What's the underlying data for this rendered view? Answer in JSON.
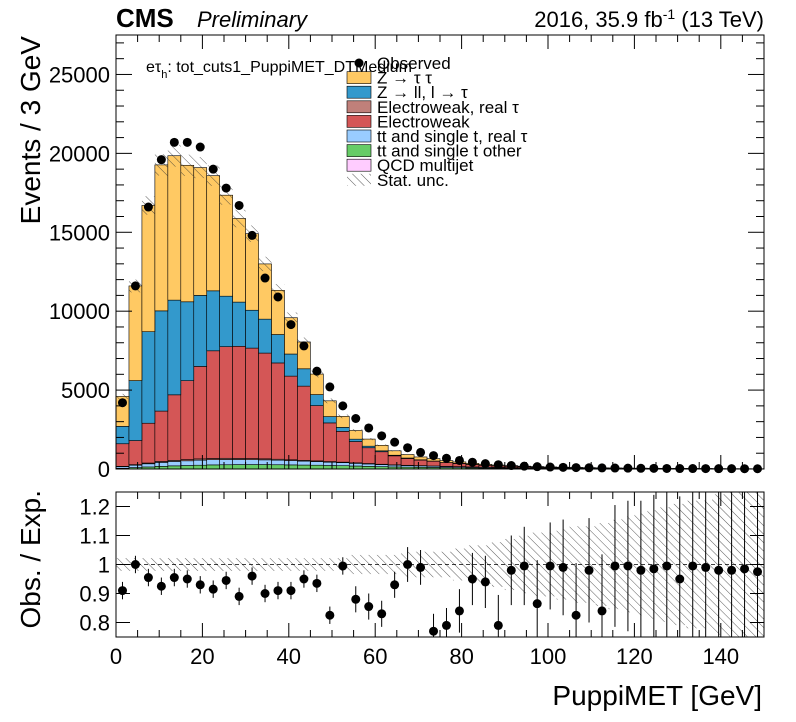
{
  "header": {
    "experiment": "CMS",
    "status": "Preliminary",
    "lumi_prefix": "2016, 35.9 fb",
    "lumi_exp": "-1",
    "lumi_suffix": " (13 TeV)"
  },
  "channel_label": {
    "prefix": "eτ",
    "sub": "h",
    "suffix": ": tot_cuts1_PuppiMET_DTMedium"
  },
  "legend": [
    {
      "label": "Observed",
      "style": "marker",
      "color": "#000000"
    },
    {
      "label": "Z → τ τ",
      "style": "box",
      "color": "#ffc963"
    },
    {
      "label": "Z → ll, l → τ",
      "style": "box",
      "color": "#3399cc"
    },
    {
      "label": "Electroweak, real  τ",
      "style": "box",
      "color": "#c0807a"
    },
    {
      "label": "Electroweak",
      "style": "box",
      "color": "#d45656"
    },
    {
      "label": "tt and single t, real  τ",
      "style": "box",
      "color": "#99ccff"
    },
    {
      "label": "tt and single t other",
      "style": "box",
      "color": "#66cc66"
    },
    {
      "label": "QCD multijet",
      "style": "box",
      "color": "#ffccff"
    },
    {
      "label": "Stat. unc.",
      "style": "hatch",
      "color": "#000000"
    }
  ],
  "chart_data": {
    "type": "bar",
    "stacked": true,
    "x_bin_edges_start": 0,
    "x_bin_width": 3,
    "xlabel": "PuppiMET [GeV]",
    "ylabel": "Events / 3 GeV",
    "ratio_ylabel": "Obs. / Exp.",
    "xlim": [
      0,
      150
    ],
    "ylim": [
      0,
      27500
    ],
    "ratio_ylim": [
      0.75,
      1.25
    ],
    "x_ticks": [
      0,
      20,
      40,
      60,
      80,
      100,
      120,
      140
    ],
    "y_ticks": [
      0,
      5000,
      10000,
      15000,
      20000,
      25000
    ],
    "ratio_y_ticks": [
      0.8,
      0.9,
      1,
      1.1,
      1.2
    ],
    "ratio_y_tick_labels": [
      "0.8",
      "0.9",
      "1",
      "1.1",
      "1.2"
    ],
    "series": [
      {
        "name": "tt and single t other",
        "color": "#66cc66",
        "values": [
          50,
          90,
          130,
          170,
          200,
          220,
          240,
          260,
          270,
          280,
          280,
          280,
          270,
          260,
          250,
          240,
          220,
          210,
          190,
          170,
          150,
          130,
          120,
          110,
          100,
          90,
          80,
          70,
          60,
          55,
          50,
          45,
          40,
          36,
          32,
          28,
          25,
          22,
          20,
          18,
          16,
          14,
          12,
          11,
          10,
          9,
          8,
          7,
          6,
          5
        ]
      },
      {
        "name": "tt and single t, real  τ",
        "color": "#99ccff",
        "values": [
          100,
          150,
          200,
          250,
          280,
          300,
          320,
          330,
          330,
          320,
          310,
          300,
          290,
          270,
          250,
          230,
          210,
          190,
          170,
          150,
          130,
          115,
          100,
          90,
          80,
          70,
          62,
          55,
          48,
          42,
          37,
          33,
          29,
          26,
          23,
          20,
          18,
          16,
          14,
          12,
          11,
          10,
          9,
          8,
          7,
          6,
          5,
          5,
          4,
          4
        ]
      },
      {
        "name": "Electroweak, real  τ",
        "color": "#c0807a",
        "values": [
          20,
          35,
          50,
          60,
          70,
          75,
          80,
          80,
          80,
          75,
          70,
          65,
          60,
          55,
          50,
          45,
          40,
          35,
          30,
          26,
          22,
          19,
          16,
          14,
          12,
          10,
          9,
          8,
          7,
          6,
          5,
          5,
          4,
          4,
          3,
          3,
          3,
          2,
          2,
          2,
          2,
          2,
          1,
          1,
          1,
          1,
          1,
          1,
          1,
          1
        ]
      },
      {
        "name": "Electroweak",
        "color": "#d45656",
        "values": [
          1430,
          1525,
          2520,
          3190,
          4150,
          5000,
          5860,
          6820,
          7070,
          7100,
          7000,
          6700,
          6100,
          5300,
          4700,
          3500,
          2450,
          1950,
          1350,
          1000,
          790,
          570,
          430,
          350,
          300,
          230,
          200,
          150,
          120,
          95,
          80,
          60,
          50,
          40,
          35,
          30,
          25,
          20,
          17,
          15,
          13,
          12,
          10,
          9,
          8,
          7,
          6,
          5,
          5,
          4
        ]
      },
      {
        "name": "Z → ll, l → τ",
        "color": "#3399cc",
        "values": [
          1100,
          3800,
          5800,
          6350,
          6000,
          5000,
          4500,
          3800,
          3200,
          2800,
          2400,
          2150,
          1800,
          1400,
          1100,
          700,
          400,
          250,
          150,
          100,
          60,
          40,
          30,
          20,
          15,
          10,
          8,
          6,
          5,
          4,
          3,
          3,
          2,
          2,
          2,
          1,
          1,
          1,
          1,
          1,
          1,
          1,
          1,
          1,
          1,
          1,
          0,
          0,
          0,
          0
        ]
      },
      {
        "name": "Z → τ τ",
        "color": "#ffc963",
        "values": [
          1900,
          6000,
          8000,
          9250,
          9150,
          8650,
          8100,
          7300,
          6400,
          5300,
          4850,
          3500,
          2800,
          2300,
          1700,
          1300,
          1000,
          700,
          550,
          450,
          350,
          280,
          220,
          180,
          150,
          120,
          90,
          70,
          60,
          50,
          40,
          35,
          30,
          25,
          20,
          17,
          15,
          13,
          11,
          10,
          9,
          8,
          7,
          6,
          5,
          4,
          4,
          3,
          3,
          3
        ]
      },
      {
        "name": "QCD multijet",
        "color": "#ffccff",
        "values": [
          0,
          0,
          0,
          0,
          0,
          0,
          0,
          0,
          0,
          0,
          0,
          0,
          0,
          0,
          0,
          0,
          0,
          0,
          0,
          0,
          0,
          0,
          0,
          0,
          0,
          0,
          0,
          0,
          0,
          0,
          0,
          0,
          0,
          0,
          0,
          0,
          0,
          0,
          0,
          0,
          0,
          0,
          0,
          0,
          0,
          0,
          0,
          0,
          0,
          0
        ]
      }
    ],
    "observed": [
      4200,
      11600,
      16600,
      19600,
      20700,
      20700,
      20400,
      19000,
      17800,
      16700,
      14800,
      12100,
      10900,
      9150,
      7800,
      6200,
      5200,
      4000,
      3200,
      2600,
      2100,
      1700,
      1350,
      1050,
      850,
      680,
      540,
      430,
      340,
      270,
      220,
      180,
      150,
      125,
      105,
      90,
      78,
      68,
      60,
      52,
      46,
      40,
      35,
      31,
      28,
      25,
      22,
      20,
      18,
      16
    ],
    "ratio_points": [
      0.91,
      1.0,
      0.955,
      0.925,
      0.955,
      0.95,
      0.93,
      0.915,
      0.945,
      0.89,
      0.96,
      0.9,
      0.91,
      0.91,
      0.95,
      0.935,
      0.825,
      0.995,
      0.88,
      0.855,
      0.83,
      0.93,
      1.0,
      0.99,
      0.77,
      0.79,
      0.84,
      0.95,
      0.94,
      0.79,
      0.98,
      0.995,
      0.865,
      0.995,
      0.99,
      0.825,
      0.98,
      0.84,
      0.995,
      0.995,
      0.98,
      0.985,
      0.995,
      0.95,
      0.995,
      0.99,
      0.98,
      0.98,
      0.985,
      0.975
    ],
    "ratio_errors": [
      0.01,
      0.01,
      0.01,
      0.01,
      0.01,
      0.01,
      0.01,
      0.01,
      0.01,
      0.01,
      0.01,
      0.01,
      0.01,
      0.01,
      0.01,
      0.01,
      0.01,
      0.01,
      0.015,
      0.015,
      0.015,
      0.015,
      0.02,
      0.02,
      0.02,
      0.02,
      0.025,
      0.03,
      0.03,
      0.035,
      0.04,
      0.045,
      0.05,
      0.05,
      0.055,
      0.06,
      0.06,
      0.065,
      0.07,
      0.075,
      0.08,
      0.085,
      0.09,
      0.095,
      0.1,
      0.1,
      0.11,
      0.115,
      0.12,
      0.12
    ]
  }
}
